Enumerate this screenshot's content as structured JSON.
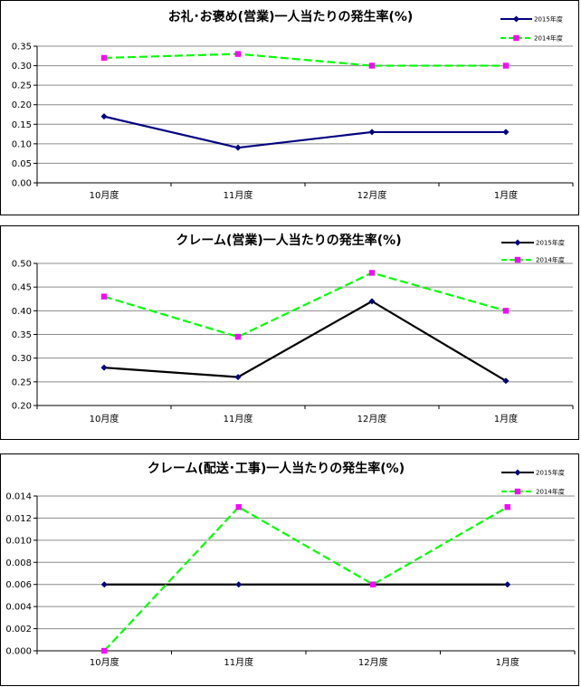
{
  "chart_data": [
    {
      "type": "line",
      "title": "お礼･お褒め(営業)一人当たりの発生率(%)",
      "categories": [
        "10月度",
        "11月度",
        "12月度",
        "1月度"
      ],
      "ylim": [
        0,
        0.35
      ],
      "yticks": [
        "0.00",
        "0.05",
        "0.10",
        "0.15",
        "0.20",
        "0.25",
        "0.30",
        "0.35"
      ],
      "grid": true,
      "legend_position": "top-right",
      "series": [
        {
          "name": "2015年度",
          "values": [
            0.17,
            0.09,
            0.13,
            0.13
          ],
          "color": "#00007f",
          "dash": "solid",
          "marker": "diamond"
        },
        {
          "name": "2014年度",
          "values": [
            0.32,
            0.33,
            0.3,
            0.3
          ],
          "color": "#00ff00",
          "marker_color": "#ff00ff",
          "dash": "dashed",
          "marker": "square"
        }
      ]
    },
    {
      "type": "line",
      "title": "クレーム(営業)一人当たりの発生率(%)",
      "categories": [
        "10月度",
        "11月度",
        "12月度",
        "1月度"
      ],
      "ylim": [
        0.2,
        0.5
      ],
      "yticks": [
        "0.20",
        "0.25",
        "0.30",
        "0.35",
        "0.40",
        "0.45",
        "0.50"
      ],
      "grid": true,
      "legend_position": "top-right",
      "series": [
        {
          "name": "2015年度",
          "values": [
            0.28,
            0.26,
            0.42,
            0.252
          ],
          "color": "#000000",
          "marker_color": "#00007f",
          "dash": "solid",
          "marker": "diamond"
        },
        {
          "name": "2014年度",
          "values": [
            0.43,
            0.345,
            0.48,
            0.4
          ],
          "color": "#00ff00",
          "marker_color": "#ff00ff",
          "dash": "dashed",
          "marker": "square"
        }
      ]
    },
    {
      "type": "line",
      "title": "クレーム(配送･工事)一人当たりの発生率(%)",
      "categories": [
        "10月度",
        "11月度",
        "12月度",
        "1月度"
      ],
      "ylim": [
        0,
        0.014
      ],
      "yticks": [
        "0.000",
        "0.002",
        "0.004",
        "0.006",
        "0.008",
        "0.010",
        "0.012",
        "0.014"
      ],
      "grid": true,
      "legend_position": "top-right",
      "series": [
        {
          "name": "2015年度",
          "values": [
            0.006,
            0.006,
            0.006,
            0.006
          ],
          "color": "#000000",
          "marker_color": "#00007f",
          "dash": "solid",
          "marker": "diamond"
        },
        {
          "name": "2014年度",
          "values": [
            0.0,
            0.013,
            0.006,
            0.013
          ],
          "color": "#00ff00",
          "marker_color": "#ff00ff",
          "dash": "dashed",
          "marker": "square"
        }
      ]
    }
  ]
}
